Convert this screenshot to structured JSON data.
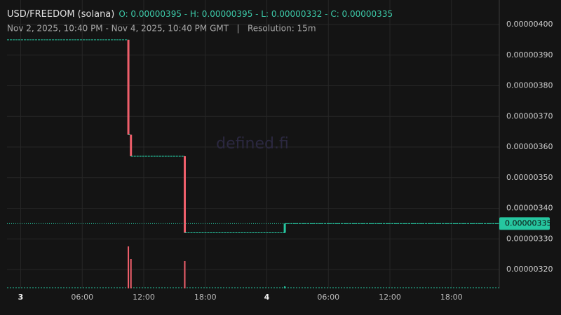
{
  "chart_data": {
    "type": "candlestick",
    "title": "USD/FREEDOM (solana)",
    "ohlc_summary": "O: 0.00000395 - H: 0.00000395 - L: 0.00000332 - C: 0.00000335",
    "subtitle": "Nov 2, 2025, 10:40 PM - Nov 4, 2025, 10:40 PM GMT   |   Resolution: 15m",
    "watermark": "defined.fi",
    "x": [
      "2025-11-03T10:30",
      "2025-11-03T10:45",
      "2025-11-03T16:00",
      "2025-11-04T01:45"
    ],
    "open": [
      3.95e-06,
      3.64e-06,
      3.57e-06,
      3.32e-06
    ],
    "close": [
      3.64e-06,
      3.57e-06,
      3.32e-06,
      3.35e-06
    ],
    "volume": [
      60,
      42,
      39,
      3
    ],
    "volume_lim": [
      0,
      100
    ],
    "up_color": "#26c6a0",
    "down_color": "#ef5f6b",
    "xlim": [
      "2025-11-02T22:40",
      "2025-11-04T22:40"
    ],
    "xticks": [
      {
        "value": "2025-11-03T00:00",
        "label": "3"
      },
      {
        "value": "2025-11-03T06:00",
        "label": "06:00"
      },
      {
        "value": "2025-11-03T12:00",
        "label": "12:00"
      },
      {
        "value": "2025-11-03T18:00",
        "label": "18:00"
      },
      {
        "value": "2025-11-04T00:00",
        "label": "4"
      },
      {
        "value": "2025-11-04T06:00",
        "label": "06:00"
      },
      {
        "value": "2025-11-04T12:00",
        "label": "12:00"
      },
      {
        "value": "2025-11-04T18:00",
        "label": "18:00"
      }
    ],
    "ylim": [
      3.1383e-06,
      4.08e-06
    ],
    "yticks": [
      {
        "value": 3.2e-06,
        "label": "0.00000320"
      },
      {
        "value": 3.3e-06,
        "label": "0.00000330"
      },
      {
        "value": 3.4e-06,
        "label": "0.00000340"
      },
      {
        "value": 3.5e-06,
        "label": "0.00000350"
      },
      {
        "value": 3.6e-06,
        "label": "0.00000360"
      },
      {
        "value": 3.7e-06,
        "label": "0.00000370"
      },
      {
        "value": 3.8e-06,
        "label": "0.00000380"
      },
      {
        "value": 3.9e-06,
        "label": "0.00000390"
      },
      {
        "value": 4e-06,
        "label": "0.00000400"
      }
    ],
    "last_price": {
      "value": 3.35e-06,
      "label": "0.00000335"
    },
    "grid": true
  }
}
